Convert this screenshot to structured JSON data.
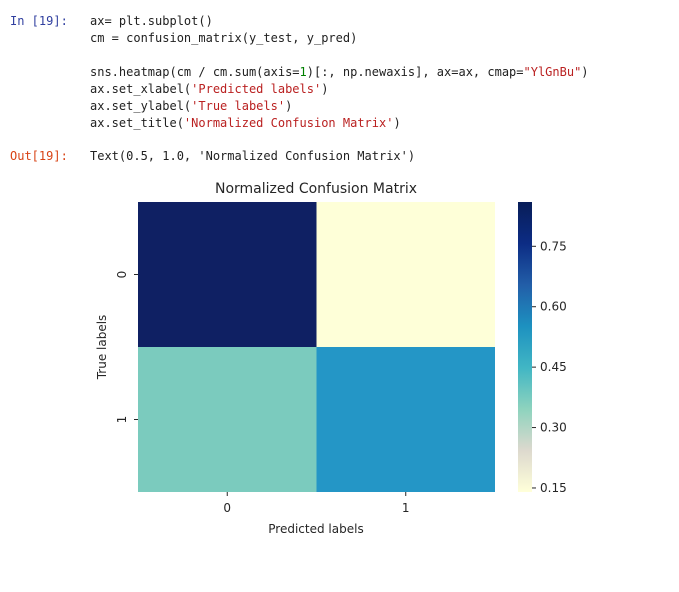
{
  "cell": {
    "in_prompt": "In [19]:",
    "out_prompt": "Out[19]:",
    "code_lines": [
      [
        {
          "t": "ax= plt.subplot()",
          "c": ""
        }
      ],
      [
        {
          "t": "cm = confusion_matrix(y_test, y_pred)",
          "c": ""
        }
      ],
      [
        {
          "t": "",
          "c": ""
        }
      ],
      [
        {
          "t": "sns.heatmap(cm / cm.sum(axis=",
          "c": ""
        },
        {
          "t": "1",
          "c": "num"
        },
        {
          "t": ")[:, np.newaxis], ax=ax, cmap=",
          "c": ""
        },
        {
          "t": "\"YlGnBu\"",
          "c": "str"
        },
        {
          "t": ")",
          "c": ""
        }
      ],
      [
        {
          "t": "ax.set_xlabel(",
          "c": ""
        },
        {
          "t": "'Predicted labels'",
          "c": "str"
        },
        {
          "t": ")",
          "c": ""
        }
      ],
      [
        {
          "t": "ax.set_ylabel(",
          "c": ""
        },
        {
          "t": "'True labels'",
          "c": "str"
        },
        {
          "t": ")",
          "c": ""
        }
      ],
      [
        {
          "t": "ax.set_title(",
          "c": ""
        },
        {
          "t": "'Normalized Confusion Matrix'",
          "c": "str"
        },
        {
          "t": ")",
          "c": ""
        }
      ]
    ],
    "output_text": "Text(0.5, 1.0, 'Normalized Confusion Matrix')"
  },
  "chart_data": {
    "type": "heatmap",
    "title": "Normalized Confusion Matrix",
    "xlabel": "Predicted labels",
    "ylabel": "True labels",
    "x_categories": [
      "0",
      "1"
    ],
    "y_categories": [
      "0",
      "1"
    ],
    "values": [
      [
        0.86,
        0.14
      ],
      [
        0.45,
        0.55
      ]
    ],
    "colormap": "YlGnBu",
    "colorbar": {
      "ticks": [
        0.15,
        0.3,
        0.45,
        0.6,
        0.75
      ],
      "tick_labels": [
        "0.15",
        "0.30",
        "0.45",
        "0.60",
        "0.75"
      ],
      "range": [
        0.14,
        0.86
      ]
    },
    "cell_colors": [
      "#0f2063",
      "#feffd8",
      "#7bcbbe",
      "#2496c6"
    ],
    "colorbar_stops": [
      "#ffffd9",
      "#ddd9ce",
      "#8ed3be",
      "#41b6c4",
      "#1d91c0",
      "#225ea8",
      "#0c2c84",
      "#081d58"
    ]
  }
}
